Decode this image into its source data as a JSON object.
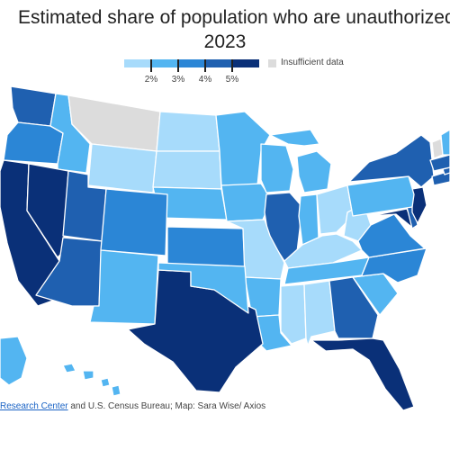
{
  "title": {
    "line1": "Estimated share of population who are unauthorized immigrants,",
    "line2": "2023"
  },
  "legend": {
    "colors": [
      "#a7dbfb",
      "#53b5f1",
      "#2b86d6",
      "#1f60b0",
      "#0a3078"
    ],
    "ticks": [
      "2%",
      "3%",
      "4%",
      "5%"
    ],
    "insufficient_label": "Insufficient data",
    "insufficient_color": "#dcdcdc"
  },
  "map_data": {
    "type": "choropleth",
    "region": "United States",
    "bins": [
      "<2%",
      "2-3%",
      "3-4%",
      "4-5%",
      ">5%"
    ],
    "states": {
      "WA": 3,
      "OR": 2,
      "ID": 1,
      "MT": "na",
      "WY": 0,
      "ND": 0,
      "SD": 0,
      "NE": 1,
      "KS": 2,
      "MN": 1,
      "IA": 1,
      "WI": 1,
      "MI": 1,
      "IL": 3,
      "IN": 1,
      "OH": 0,
      "KY": 0,
      "WV": 0,
      "TN": 1,
      "MO": 0,
      "AR": 1,
      "LA": 1,
      "MS": 0,
      "AL": 0,
      "GA": 3,
      "FL": 4,
      "SC": 1,
      "NC": 2,
      "VA": 2,
      "MD": 4,
      "DE": 3,
      "NJ": 4,
      "PA": 1,
      "NY": 3,
      "CT": 3,
      "RI": 3,
      "MA": 3,
      "VT": "na",
      "NH": 1,
      "ME": 0,
      "CA": 4,
      "NV": 4,
      "UT": 3,
      "AZ": 3,
      "CO": 2,
      "NM": 1,
      "TX": 4,
      "OK": 1,
      "AK": 1,
      "HI": 1
    }
  },
  "source": {
    "link_text": "Research Center",
    "rest_text": " and U.S. Census Bureau; Map: Sara Wise/ Axios"
  }
}
